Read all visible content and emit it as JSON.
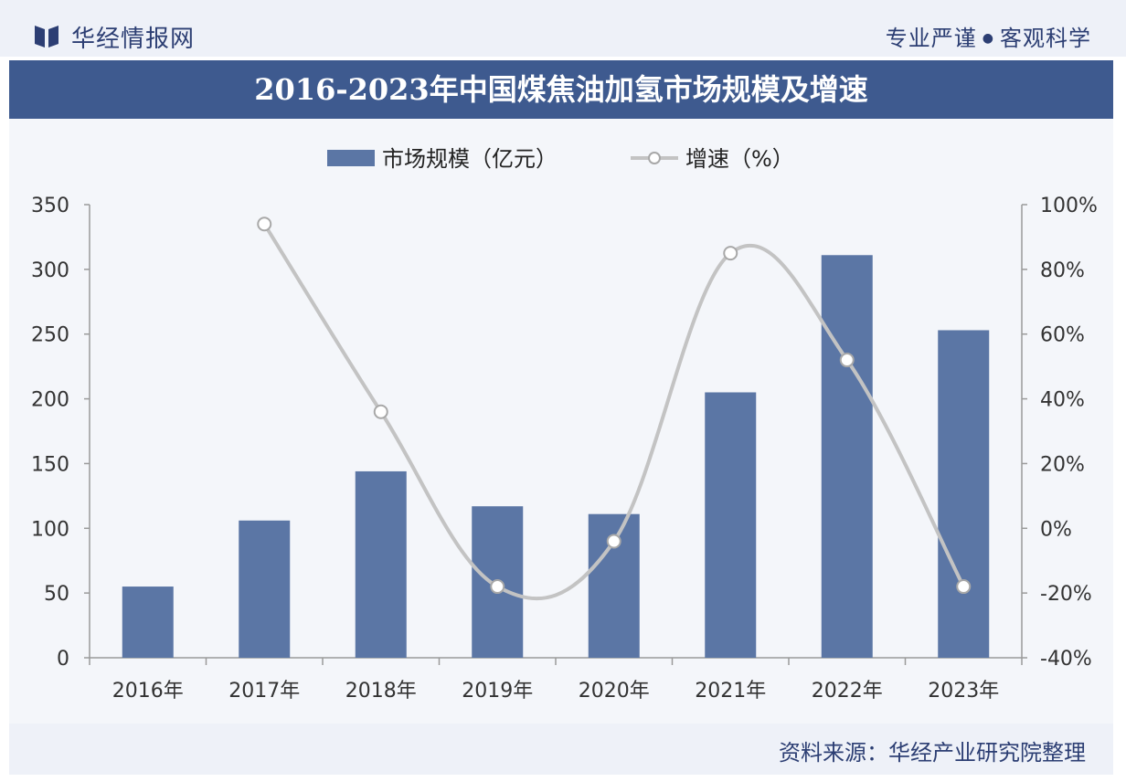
{
  "header": {
    "brand": "华经情报网",
    "slogan_left": "专业严谨",
    "slogan_dot": "●",
    "slogan_right": "客观科学"
  },
  "footer": {
    "source": "资料来源：华经产业研究院整理"
  },
  "colors": {
    "bar": "#5b76a5",
    "line": "#c3c3c3",
    "title_bg": "#3e5a8f",
    "text_dark": "#2c3e73"
  },
  "chart_data": {
    "type": "bar",
    "title": "2016-2023年中国煤焦油加氢市场规模及增速",
    "categories": [
      "2016年",
      "2017年",
      "2018年",
      "2019年",
      "2020年",
      "2021年",
      "2022年",
      "2023年"
    ],
    "series": [
      {
        "name": "市场规模（亿元）",
        "type": "bar",
        "axis": "left",
        "values": [
          55,
          106,
          144,
          117,
          111,
          205,
          311,
          253
        ]
      },
      {
        "name": "增速（%）",
        "type": "line",
        "axis": "right",
        "values": [
          null,
          94,
          36,
          -18,
          -4,
          85,
          52,
          -18
        ]
      }
    ],
    "y_left": {
      "ticks": [
        0,
        50,
        100,
        150,
        200,
        250,
        300,
        350
      ],
      "ylim": [
        0,
        350
      ]
    },
    "y_right": {
      "ticks": [
        "-40%",
        "-20%",
        "0%",
        "20%",
        "40%",
        "60%",
        "80%",
        "100%"
      ],
      "ylim": [
        -40,
        100
      ]
    },
    "legend_position": "top-center",
    "grid": false
  }
}
